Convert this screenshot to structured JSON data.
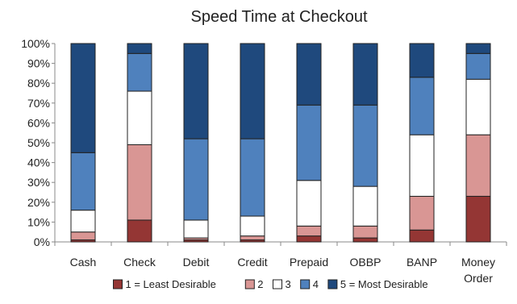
{
  "chart_data": {
    "type": "bar",
    "stacked": true,
    "title": "Speed Time at Checkout",
    "xlabel": "",
    "ylabel": "",
    "ylim": [
      0,
      100
    ],
    "yticks": [
      "0%",
      "10%",
      "20%",
      "30%",
      "40%",
      "50%",
      "60%",
      "70%",
      "80%",
      "90%",
      "100%"
    ],
    "categories": [
      [
        "Cash"
      ],
      [
        "Check"
      ],
      [
        "Debit"
      ],
      [
        "Credit"
      ],
      [
        "Prepaid"
      ],
      [
        "OBBP"
      ],
      [
        "BANP"
      ],
      [
        "Money",
        "Order"
      ]
    ],
    "series": [
      {
        "name": "1 = Least Desirable",
        "color": "#943634",
        "values": [
          1,
          11,
          1,
          1,
          3,
          2,
          6,
          23
        ]
      },
      {
        "name": "2",
        "color": "#d99694",
        "values": [
          4,
          38,
          1,
          2,
          5,
          6,
          17,
          31
        ]
      },
      {
        "name": "3",
        "color": "#ffffff",
        "values": [
          11,
          27,
          9,
          10,
          23,
          20,
          31,
          28
        ]
      },
      {
        "name": "4",
        "color": "#4f81bd",
        "values": [
          29,
          19,
          41,
          39,
          38,
          41,
          29,
          13
        ]
      },
      {
        "name": "5 = Most Desirable",
        "color": "#1f497d",
        "values": [
          55,
          5,
          48,
          48,
          31,
          31,
          17,
          5
        ]
      }
    ],
    "legend_position": "bottom",
    "grid": false
  }
}
